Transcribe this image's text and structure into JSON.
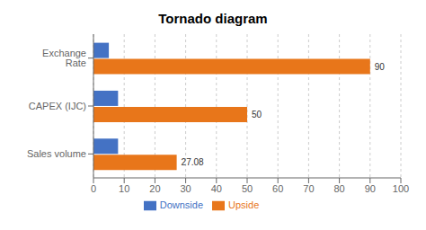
{
  "chart_data": {
    "type": "bar",
    "orientation": "horizontal",
    "title": "Tornado diagram",
    "categories": [
      "Exchange Rate",
      "CAPEX (IJC)",
      "Sales volume"
    ],
    "series": [
      {
        "name": "Downside",
        "color": "#4472C4",
        "values": [
          5,
          8,
          8
        ]
      },
      {
        "name": "Upside",
        "color": "#E8761A",
        "values": [
          90,
          50,
          27.08
        ],
        "data_labels": true
      }
    ],
    "xlim": [
      0,
      100
    ],
    "xticks": [
      0,
      10,
      20,
      30,
      40,
      50,
      60,
      70,
      80,
      90,
      100
    ],
    "grid": true,
    "legend": "bottom"
  }
}
